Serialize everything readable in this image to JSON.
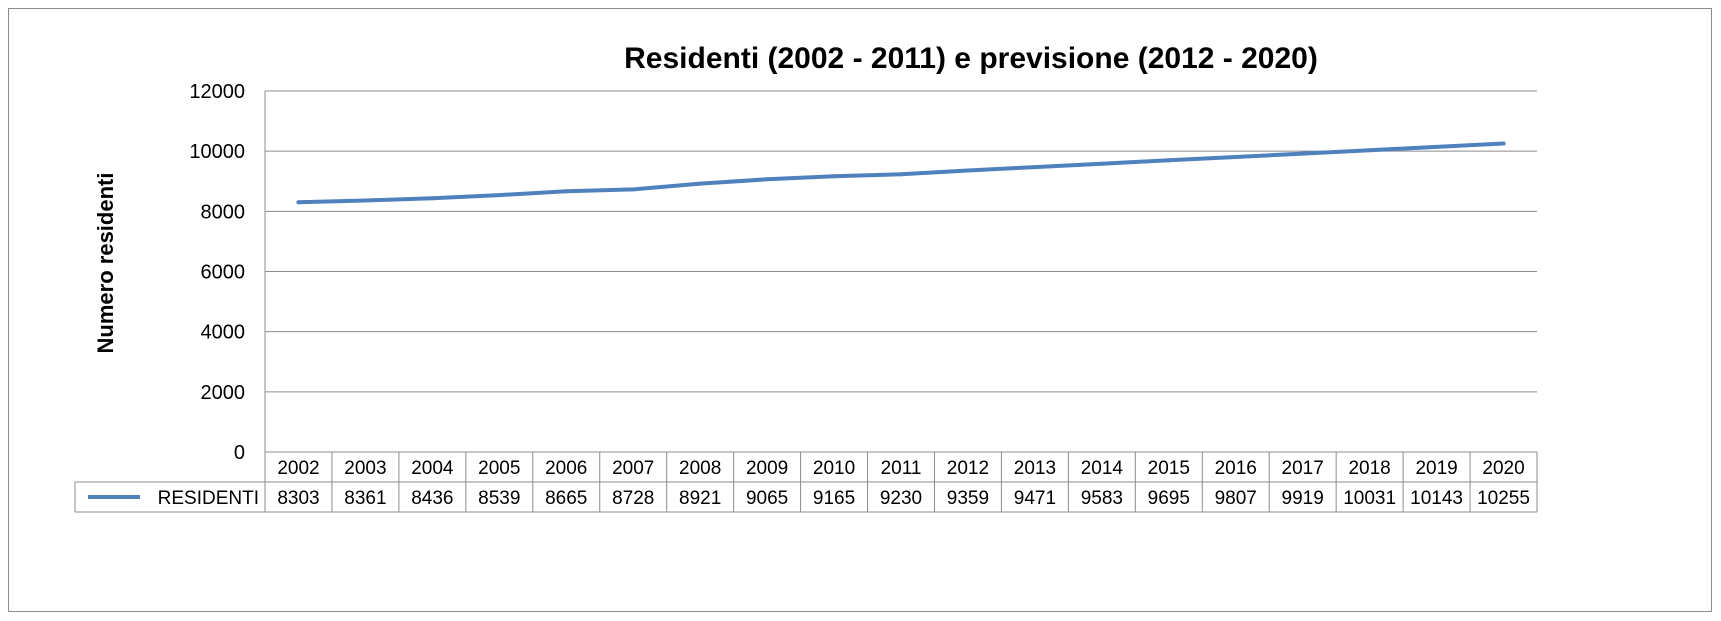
{
  "chart_data": {
    "type": "line",
    "title": "Residenti (2002 - 2011) e previsione (2012 - 2020)",
    "xlabel": "",
    "ylabel": "Numero residenti",
    "ylim": [
      0,
      12000
    ],
    "yticks": [
      "0",
      "2000",
      "4000",
      "6000",
      "8000",
      "10000",
      "12000"
    ],
    "grid": true,
    "legend_placement": "data-table",
    "categories": [
      "2002",
      "2003",
      "2004",
      "2005",
      "2006",
      "2007",
      "2008",
      "2009",
      "2010",
      "2011",
      "2012",
      "2013",
      "2014",
      "2015",
      "2016",
      "2017",
      "2018",
      "2019",
      "2020"
    ],
    "series": [
      {
        "name": "RESIDENTI",
        "color": "#4f81bd",
        "values": [
          8303,
          8361,
          8436,
          8539,
          8665,
          8728,
          8921,
          9065,
          9165,
          9230,
          9359,
          9471,
          9583,
          9695,
          9807,
          9919,
          10031,
          10143,
          10255
        ]
      }
    ]
  }
}
